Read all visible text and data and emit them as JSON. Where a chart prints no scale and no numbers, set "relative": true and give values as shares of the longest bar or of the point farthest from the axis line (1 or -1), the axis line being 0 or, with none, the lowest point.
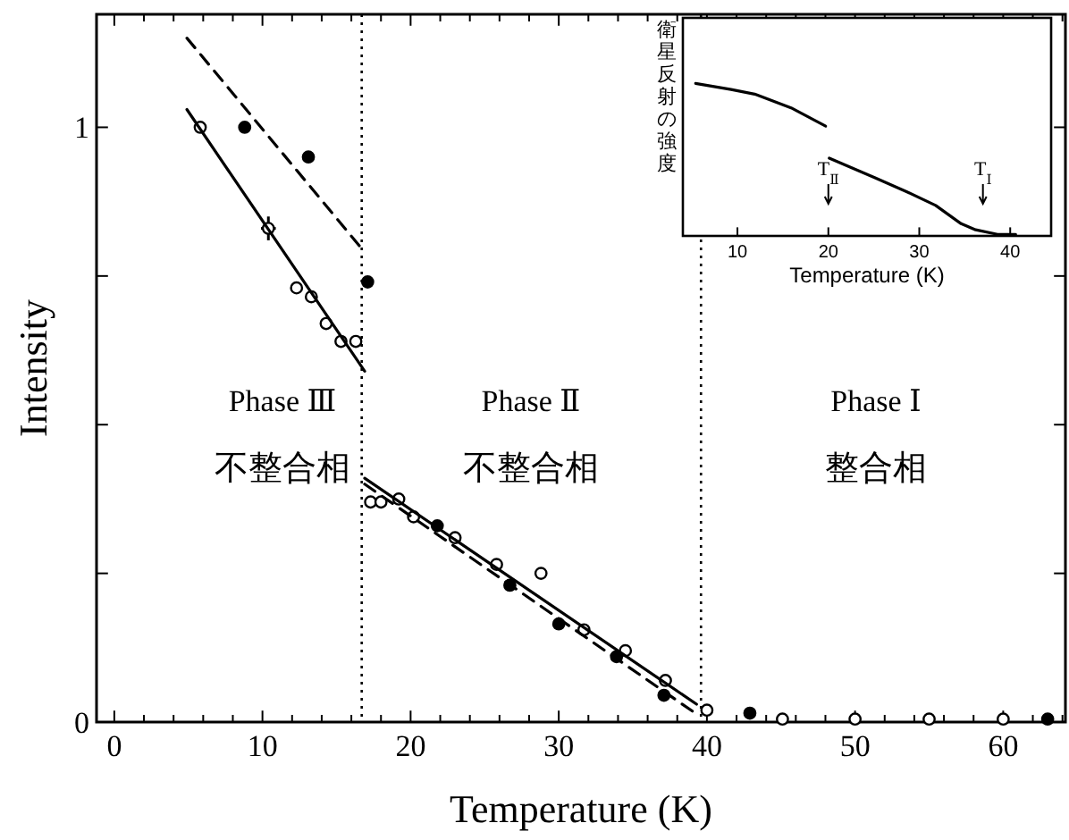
{
  "chart_data": [
    {
      "type": "scatter",
      "xlabel": "Temperature (K)",
      "ylabel": "Intensity",
      "xlim": [
        -1.2,
        64.2
      ],
      "ylim": [
        0,
        1.19
      ],
      "xticks": [
        0,
        {
          "value": 2,
          "label": null
        },
        {
          "value": 4,
          "label": null
        },
        {
          "value": 6,
          "label": null
        },
        {
          "value": 8,
          "label": null
        },
        10,
        {
          "value": 12,
          "label": null
        },
        {
          "value": 14,
          "label": null
        },
        {
          "value": 16,
          "label": null
        },
        {
          "value": 18,
          "label": null
        },
        20,
        {
          "value": 22,
          "label": null
        },
        {
          "value": 24,
          "label": null
        },
        {
          "value": 26,
          "label": null
        },
        {
          "value": 28,
          "label": null
        },
        30,
        {
          "value": 32,
          "label": null
        },
        {
          "value": 34,
          "label": null
        },
        {
          "value": 36,
          "label": null
        },
        {
          "value": 38,
          "label": null
        },
        40,
        {
          "value": 42,
          "label": null
        },
        {
          "value": 44,
          "label": null
        },
        {
          "value": 46,
          "label": null
        },
        {
          "value": 48,
          "label": null
        },
        50,
        {
          "value": 52,
          "label": null
        },
        {
          "value": 54,
          "label": null
        },
        {
          "value": 56,
          "label": null
        },
        {
          "value": 58,
          "label": null
        },
        60,
        {
          "value": 62,
          "label": null
        },
        {
          "value": 64,
          "label": null
        }
      ],
      "yticks": [
        0,
        {
          "value": 0.25,
          "label": null
        },
        {
          "value": 0.5,
          "label": null
        },
        {
          "value": 0.75,
          "label": null
        },
        1
      ],
      "marker": "circle",
      "series": [
        {
          "color": "#ffffff",
          "x": [
            5.8,
            10.4,
            12.3,
            13.3,
            14.3,
            15.3,
            16.3,
            17.3,
            18.0,
            19.2,
            20.2,
            23.0,
            25.8,
            28.8,
            31.7,
            34.5,
            37.2,
            40.0,
            45.1,
            50,
            55,
            60
          ],
          "values": [
            1.0,
            0.83,
            0.73,
            0.715,
            0.67,
            0.64,
            0.64,
            0.37,
            0.37,
            0.375,
            0.345,
            0.31,
            0.265,
            0.25,
            0.155,
            0.12,
            0.07,
            0.02,
            0.005,
            0.005,
            0.005,
            0.005
          ],
          "errors": [
            null,
            0.02,
            null,
            null,
            null,
            null,
            null,
            null,
            null,
            null,
            null,
            null,
            null,
            null,
            null,
            null,
            null,
            null,
            null,
            null,
            null,
            null
          ],
          "xerrors": [
            null,
            0.5,
            null,
            null,
            null,
            null,
            null,
            null,
            null,
            null,
            null,
            null,
            null,
            null,
            null,
            null,
            null,
            null,
            null,
            null,
            null,
            null
          ]
        },
        {
          "color": "#000000",
          "x": [
            8.8,
            13.1,
            17.1,
            21.8,
            26.7,
            30.0,
            33.9,
            37.1,
            42.9,
            63.0
          ],
          "values": [
            1.0,
            0.95,
            0.74,
            0.33,
            0.23,
            0.165,
            0.11,
            0.045,
            0.015,
            0.005
          ]
        },
        {
          "type": "line",
          "color": "#000000",
          "line_style": "solid",
          "marker": "none",
          "x": [
            4.9,
            16.9
          ],
          "values": [
            1.03,
            0.59
          ]
        },
        {
          "type": "line",
          "color": "#000000",
          "line_style": "dashed",
          "marker": "none",
          "x": [
            4.9,
            16.9
          ],
          "values": [
            1.15,
            0.79
          ]
        },
        {
          "type": "line",
          "color": "#000000",
          "line_style": "solid",
          "marker": "none",
          "x": [
            16.9,
            39.3
          ],
          "values": [
            0.41,
            0.03
          ]
        },
        {
          "type": "line",
          "color": "#000000",
          "line_style": "dashed",
          "marker": "none",
          "x": [
            16.9,
            39.5
          ],
          "values": [
            0.4,
            0.01
          ]
        }
      ],
      "ref_lines": [
        {
          "axis": "x",
          "value": 16.7,
          "line_style": "dotted",
          "color": "#000000"
        },
        {
          "axis": "x",
          "value": 39.6,
          "line_style": "dotted",
          "color": "#000000"
        }
      ],
      "annotations": [
        "Phase Ⅲ",
        "不整合相",
        "Phase Ⅱ",
        "不整合相",
        "Phase Ⅰ",
        "整合相"
      ]
    },
    {
      "type": "line",
      "relative": true,
      "xlabel": "Temperature (K)",
      "ylabel": "衛星反射の強度",
      "xlim": [
        4,
        44.5
      ],
      "xticks": [
        10,
        20,
        30,
        40
      ],
      "tick_labels": "x",
      "marker": "none",
      "line_style": "solid",
      "series": [
        {
          "color": "#000000",
          "x": [
            5.4,
            9.3,
            11.9,
            15.9,
            19.7
          ],
          "values": [
            1.0,
            0.96,
            0.93,
            0.84,
            0.72
          ]
        },
        {
          "color": "#000000",
          "x": [
            20.1,
            25.2,
            28.6,
            31.8,
            34.6,
            36.2,
            38.6,
            40.6
          ],
          "values": [
            0.51,
            0.38,
            0.29,
            0.2,
            0.08,
            0.04,
            0.01,
            0.01
          ]
        }
      ],
      "annotations": [
        "T$_{Ⅱ}$",
        "T$_{Ⅰ}$"
      ]
    }
  ]
}
